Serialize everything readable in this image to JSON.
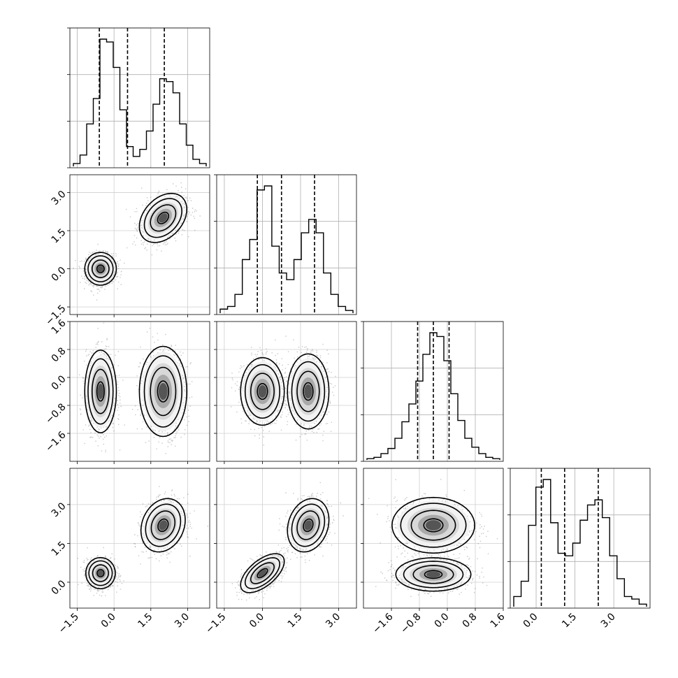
{
  "chart_data": {
    "type": "corner",
    "n_params": 4,
    "grid": true,
    "parameters": [
      {
        "range": [
          -1.8,
          3.9
        ],
        "ticks": [
          -1.5,
          0.0,
          1.5,
          3.0
        ],
        "tick_labels": [
          "−1.5",
          "0.0",
          "1.5",
          "3.0"
        ],
        "quantiles": [
          -0.6,
          0.55,
          2.05
        ]
      },
      {
        "range": [
          -1.8,
          3.7
        ],
        "ticks": [
          -1.5,
          0.0,
          1.5,
          3.0
        ],
        "tick_labels": [
          "−1.5",
          "0.0",
          "1.5",
          "3.0"
        ],
        "quantiles": [
          -0.2,
          0.75,
          2.05
        ]
      },
      {
        "range": [
          -2.4,
          1.6
        ],
        "ticks": [
          -1.6,
          -0.8,
          0.0,
          0.8,
          1.6
        ],
        "tick_labels": [
          "−1.6",
          "−0.8",
          "0.0",
          "0.8",
          "1.6"
        ],
        "quantiles": [
          -0.85,
          -0.4,
          0.05
        ]
      },
      {
        "range": [
          -1.0,
          4.4
        ],
        "ticks": [
          0.0,
          1.5,
          3.0
        ],
        "tick_labels": [
          "0.0",
          "1.5",
          "3.0"
        ],
        "quantiles": [
          0.2,
          1.1,
          2.4
        ]
      }
    ],
    "histograms": [
      {
        "param": 0,
        "counts": [
          2,
          8,
          30,
          48,
          90,
          88,
          70,
          40,
          14,
          7,
          12,
          25,
          44,
          62,
          60,
          52,
          30,
          15,
          5,
          2
        ]
      },
      {
        "param": 1,
        "counts": [
          3,
          5,
          14,
          40,
          55,
          92,
          95,
          50,
          30,
          25,
          40,
          60,
          70,
          60,
          30,
          14,
          5,
          2
        ]
      },
      {
        "param": 2,
        "counts": [
          1,
          2,
          5,
          9,
          17,
          30,
          44,
          62,
          83,
          100,
          97,
          78,
          52,
          31,
          17,
          10,
          5,
          2,
          1
        ]
      },
      {
        "param": 3,
        "counts": [
          4,
          10,
          32,
          47,
          50,
          33,
          21,
          20,
          25,
          34,
          40,
          42,
          35,
          20,
          11,
          4,
          3,
          1
        ]
      }
    ],
    "pairs": [
      {
        "x": 0,
        "y": 1,
        "modes": [
          {
            "center": [
              -0.55,
              0.0
            ],
            "sigma": [
              0.3,
              0.3
            ],
            "rho": 0.0,
            "weight": 0.55
          },
          {
            "center": [
              2.0,
              2.0
            ],
            "sigma": [
              0.45,
              0.45
            ],
            "rho": 0.35,
            "weight": 0.45
          }
        ]
      },
      {
        "x": 0,
        "y": 2,
        "modes": [
          {
            "center": [
              -0.55,
              -0.4
            ],
            "sigma": [
              0.3,
              0.55
            ],
            "rho": 0.0,
            "weight": 0.55
          },
          {
            "center": [
              2.0,
              -0.4
            ],
            "sigma": [
              0.45,
              0.6
            ],
            "rho": 0.0,
            "weight": 0.45
          }
        ]
      },
      {
        "x": 1,
        "y": 2,
        "modes": [
          {
            "center": [
              0.0,
              -0.4
            ],
            "sigma": [
              0.4,
              0.45
            ],
            "rho": 0.0,
            "weight": 0.55
          },
          {
            "center": [
              1.8,
              -0.4
            ],
            "sigma": [
              0.38,
              0.5
            ],
            "rho": 0.0,
            "weight": 0.45
          }
        ]
      },
      {
        "x": 0,
        "y": 3,
        "modes": [
          {
            "center": [
              -0.55,
              0.35
            ],
            "sigma": [
              0.28,
              0.28
            ],
            "rho": 0.0,
            "weight": 0.55
          },
          {
            "center": [
              2.0,
              2.2
            ],
            "sigma": [
              0.42,
              0.48
            ],
            "rho": 0.2,
            "weight": 0.45
          }
        ]
      },
      {
        "x": 1,
        "y": 3,
        "modes": [
          {
            "center": [
              0.0,
              0.35
            ],
            "sigma": [
              0.4,
              0.35
            ],
            "rho": 0.6,
            "weight": 0.55
          },
          {
            "center": [
              1.8,
              2.2
            ],
            "sigma": [
              0.38,
              0.48
            ],
            "rho": 0.2,
            "weight": 0.45
          }
        ]
      },
      {
        "x": 2,
        "y": 3,
        "modes": [
          {
            "center": [
              -0.4,
              0.3
            ],
            "sigma": [
              0.5,
              0.3
            ],
            "rho": 0.0,
            "weight": 0.55
          },
          {
            "center": [
              -0.4,
              2.2
            ],
            "sigma": [
              0.55,
              0.5
            ],
            "rho": 0.0,
            "weight": 0.45
          }
        ]
      }
    ]
  }
}
